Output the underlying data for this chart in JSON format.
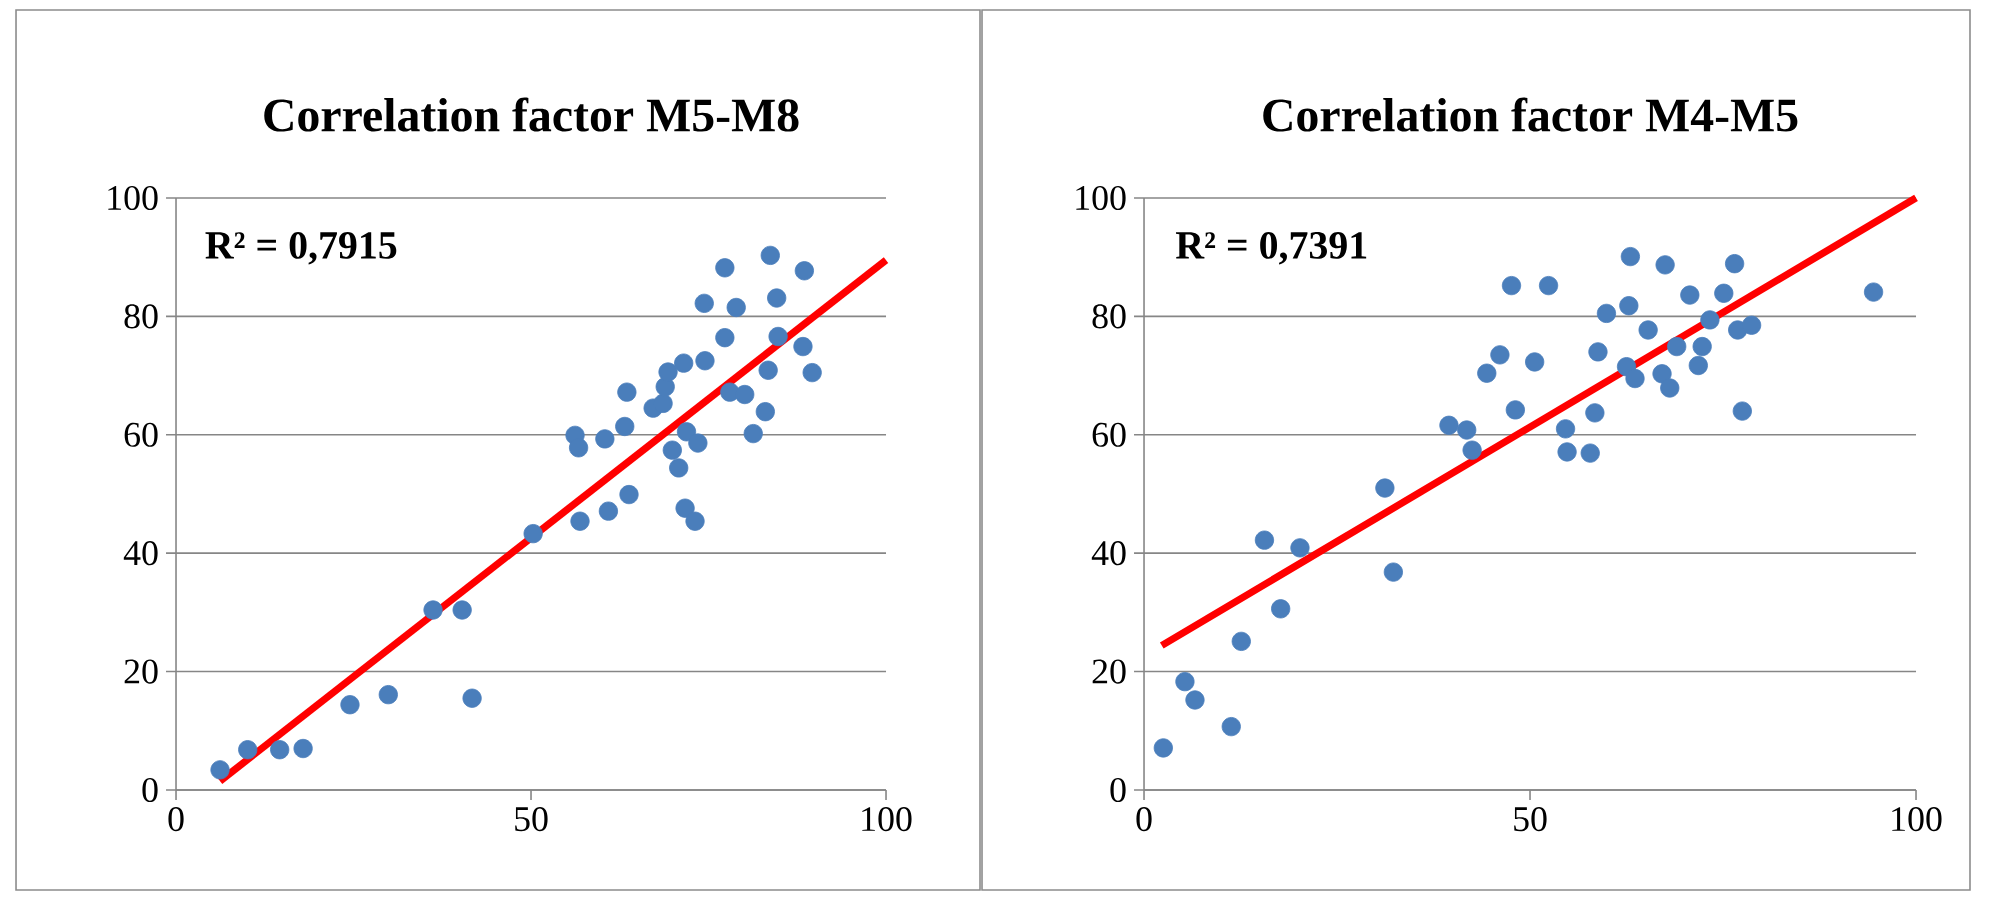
{
  "chart_data": [
    {
      "type": "scatter",
      "title": "Correlation factor M5-M8",
      "annotations": [
        "R² = 0,7915"
      ],
      "xlim": [
        0,
        100
      ],
      "ylim": [
        0,
        100
      ],
      "xticks": [
        0,
        50,
        100
      ],
      "yticks": [
        0,
        20,
        40,
        60,
        80,
        100
      ],
      "grid": "y",
      "series": [
        {
          "color": "#4a7ebb",
          "marker": "circle",
          "x": [
            6.2,
            10.1,
            14.6,
            17.9,
            24.5,
            29.9,
            36.2,
            40.3,
            41.7,
            50.3,
            56.2,
            56.7,
            56.9,
            60.4,
            60.9,
            63.2,
            63.5,
            63.8,
            67.2,
            68.6,
            68.9,
            69.3,
            71.5,
            69.9,
            70.8,
            71.9,
            73.5,
            71.7,
            73.1,
            74.5,
            74.4,
            77.3,
            78.9,
            77.3,
            78,
            80.1,
            83.4,
            84.8,
            84.6,
            83.7,
            88.5,
            88.3,
            89.6,
            83,
            81.3
          ],
          "values": [
            3.4,
            6.8,
            6.8,
            7,
            14.4,
            16.1,
            30.4,
            30.4,
            15.5,
            43.3,
            59.9,
            57.8,
            45.4,
            59.3,
            47.1,
            61.4,
            67.2,
            49.9,
            64.5,
            65.3,
            68.1,
            70.6,
            72.1,
            57.4,
            54.4,
            60.5,
            58.6,
            47.6,
            45.4,
            72.5,
            82.2,
            88.2,
            81.5,
            76.4,
            67.2,
            66.8,
            70.9,
            76.6,
            83.1,
            90.3,
            87.7,
            74.9,
            70.5,
            63.9,
            60.2
          ]
        },
        {
          "type": "line",
          "color": "#ff0000",
          "marker": "none",
          "x": [
            6.2,
            100
          ],
          "values": [
            1.5,
            89.5
          ]
        }
      ]
    },
    {
      "type": "scatter",
      "title": "Correlation factor M4-M5",
      "annotations": [
        "R² = 0,7391"
      ],
      "xlim": [
        0,
        100
      ],
      "ylim": [
        0,
        100
      ],
      "xticks": [
        0,
        50,
        100
      ],
      "yticks": [
        0,
        20,
        40,
        60,
        80,
        100
      ],
      "grid": "y",
      "series": [
        {
          "color": "#4a7ebb",
          "marker": "circle",
          "x": [
            2.5,
            5.3,
            6.6,
            11.3,
            12.6,
            15.6,
            17.7,
            20.2,
            31.2,
            32.3,
            39.5,
            41.8,
            42.5,
            44.4,
            46.1,
            47.6,
            48.1,
            52.4,
            50.6,
            54.6,
            54.8,
            57.8,
            58.4,
            58.8,
            59.9,
            62.8,
            63,
            62.5,
            63.6,
            65.3,
            67.5,
            67.1,
            68.1,
            69,
            70.7,
            72.3,
            71.8,
            73.3,
            75.1,
            76.5,
            76.9,
            78.7,
            77.5,
            94.5
          ],
          "values": [
            7.1,
            18.3,
            15.2,
            10.7,
            25.1,
            42.2,
            30.6,
            40.9,
            51,
            36.8,
            61.6,
            60.8,
            57.4,
            70.4,
            73.5,
            85.2,
            64.2,
            85.2,
            72.3,
            61,
            57.1,
            56.9,
            63.7,
            74,
            80.5,
            81.8,
            90.1,
            71.5,
            69.5,
            77.7,
            88.7,
            70.3,
            67.9,
            74.9,
            83.6,
            74.9,
            71.7,
            79.4,
            83.9,
            88.9,
            77.7,
            78.5,
            64,
            84.1
          ]
        },
        {
          "type": "line",
          "color": "#ff0000",
          "marker": "none",
          "x": [
            2.3,
            100
          ],
          "values": [
            24.4,
            100
          ]
        }
      ]
    }
  ]
}
